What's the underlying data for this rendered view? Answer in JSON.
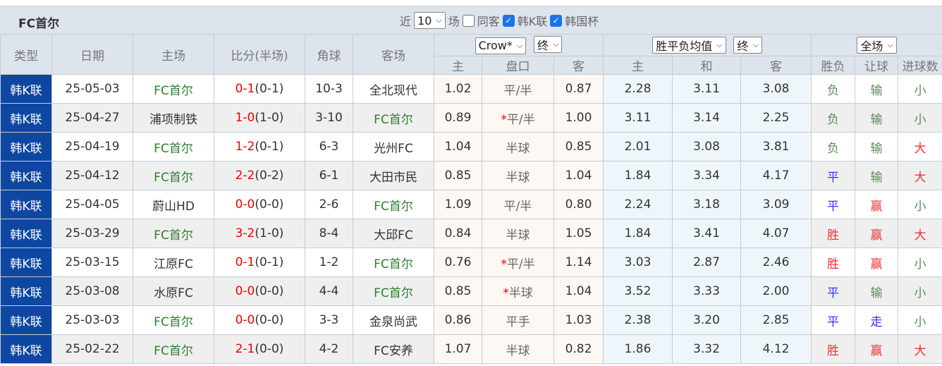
{
  "team": "FC首尔",
  "filters": {
    "recent_label": "近",
    "recent_value": "10",
    "games_label": "场",
    "same_home_label": "同客",
    "same_home_checked": false,
    "league1": "韩K联",
    "league1_checked": true,
    "league2": "韩国杯",
    "league2_checked": true
  },
  "headers": {
    "type": "类型",
    "date": "日期",
    "home": "主场",
    "score": "比分(半场)",
    "corner": "角球",
    "away": "客场",
    "handicap_company": "Crow*",
    "handicap_phase": "终",
    "avg_type": "胜平负均值",
    "avg_phase": "终",
    "scope": "全场",
    "h_home": "主",
    "h_line": "盘口",
    "h_away": "客",
    "e_home": "主",
    "e_draw": "和",
    "e_away": "客",
    "wl": "胜负",
    "ah": "让球",
    "ou": "进球数"
  },
  "colors": {
    "league_badge": "#0d47a1",
    "team_highlight": "#2e7d32",
    "score_loss": "#e00000",
    "win": "#e33333",
    "draw": "#3333ff",
    "loss": "#5a8a5a"
  },
  "rows": [
    {
      "type": "韩K联",
      "date": "25-05-03",
      "home": "FC首尔",
      "home_hl": true,
      "ft": "0-1",
      "ht": "(0-1)",
      "corner": "10-3",
      "away": "全北现代",
      "away_hl": false,
      "h1": "1.02",
      "line": "平/半",
      "star": false,
      "h2": "0.87",
      "e1": "2.28",
      "e2": "3.11",
      "e3": "3.08",
      "wl": "负",
      "ah": "输",
      "ou": "小"
    },
    {
      "type": "韩K联",
      "date": "25-04-27",
      "home": "浦项制铁",
      "home_hl": false,
      "ft": "1-0",
      "ht": "(1-0)",
      "corner": "3-10",
      "away": "FC首尔",
      "away_hl": true,
      "h1": "0.89",
      "line": "平/半",
      "star": true,
      "h2": "1.00",
      "e1": "3.11",
      "e2": "3.14",
      "e3": "2.25",
      "wl": "负",
      "ah": "输",
      "ou": "小"
    },
    {
      "type": "韩K联",
      "date": "25-04-19",
      "home": "FC首尔",
      "home_hl": true,
      "ft": "1-2",
      "ht": "(0-1)",
      "corner": "6-3",
      "away": "光州FC",
      "away_hl": false,
      "h1": "1.04",
      "line": "半球",
      "star": false,
      "h2": "0.85",
      "e1": "2.01",
      "e2": "3.08",
      "e3": "3.81",
      "wl": "负",
      "ah": "输",
      "ou": "大"
    },
    {
      "type": "韩K联",
      "date": "25-04-12",
      "home": "FC首尔",
      "home_hl": true,
      "ft": "2-2",
      "ht": "(0-2)",
      "corner": "6-1",
      "away": "大田市民",
      "away_hl": false,
      "h1": "0.85",
      "line": "半球",
      "star": false,
      "h2": "1.04",
      "e1": "1.84",
      "e2": "3.34",
      "e3": "4.17",
      "wl": "平",
      "ah": "输",
      "ou": "大"
    },
    {
      "type": "韩K联",
      "date": "25-04-05",
      "home": "蔚山HD",
      "home_hl": false,
      "ft": "0-0",
      "ht": "(0-0)",
      "corner": "2-6",
      "away": "FC首尔",
      "away_hl": true,
      "h1": "1.09",
      "line": "平/半",
      "star": false,
      "h2": "0.80",
      "e1": "2.24",
      "e2": "3.18",
      "e3": "3.09",
      "wl": "平",
      "ah": "赢",
      "ou": "小"
    },
    {
      "type": "韩K联",
      "date": "25-03-29",
      "home": "FC首尔",
      "home_hl": true,
      "ft": "3-2",
      "ht": "(1-0)",
      "corner": "8-4",
      "away": "大邱FC",
      "away_hl": false,
      "h1": "0.84",
      "line": "半球",
      "star": false,
      "h2": "1.05",
      "e1": "1.84",
      "e2": "3.41",
      "e3": "4.07",
      "wl": "胜",
      "ah": "赢",
      "ou": "大"
    },
    {
      "type": "韩K联",
      "date": "25-03-15",
      "home": "江原FC",
      "home_hl": false,
      "ft": "0-1",
      "ht": "(0-1)",
      "corner": "1-2",
      "away": "FC首尔",
      "away_hl": true,
      "h1": "0.76",
      "line": "平/半",
      "star": true,
      "h2": "1.14",
      "e1": "3.03",
      "e2": "2.87",
      "e3": "2.46",
      "wl": "胜",
      "ah": "赢",
      "ou": "小"
    },
    {
      "type": "韩K联",
      "date": "25-03-08",
      "home": "水原FC",
      "home_hl": false,
      "ft": "0-0",
      "ht": "(0-0)",
      "corner": "4-4",
      "away": "FC首尔",
      "away_hl": true,
      "h1": "0.85",
      "line": "半球",
      "star": true,
      "h2": "1.04",
      "e1": "3.52",
      "e2": "3.33",
      "e3": "2.00",
      "wl": "平",
      "ah": "输",
      "ou": "小"
    },
    {
      "type": "韩K联",
      "date": "25-03-03",
      "home": "FC首尔",
      "home_hl": true,
      "ft": "0-0",
      "ht": "(0-0)",
      "corner": "3-3",
      "away": "金泉尚武",
      "away_hl": false,
      "h1": "0.86",
      "line": "平手",
      "star": false,
      "h2": "1.03",
      "e1": "2.38",
      "e2": "3.20",
      "e3": "2.85",
      "wl": "平",
      "ah": "走",
      "ou": "小"
    },
    {
      "type": "韩K联",
      "date": "25-02-22",
      "home": "FC首尔",
      "home_hl": true,
      "ft": "2-1",
      "ht": "(0-0)",
      "corner": "4-2",
      "away": "FC安养",
      "away_hl": false,
      "h1": "1.07",
      "line": "半球",
      "star": false,
      "h2": "0.82",
      "e1": "1.86",
      "e2": "3.32",
      "e3": "4.12",
      "wl": "胜",
      "ah": "赢",
      "ou": "大"
    }
  ]
}
